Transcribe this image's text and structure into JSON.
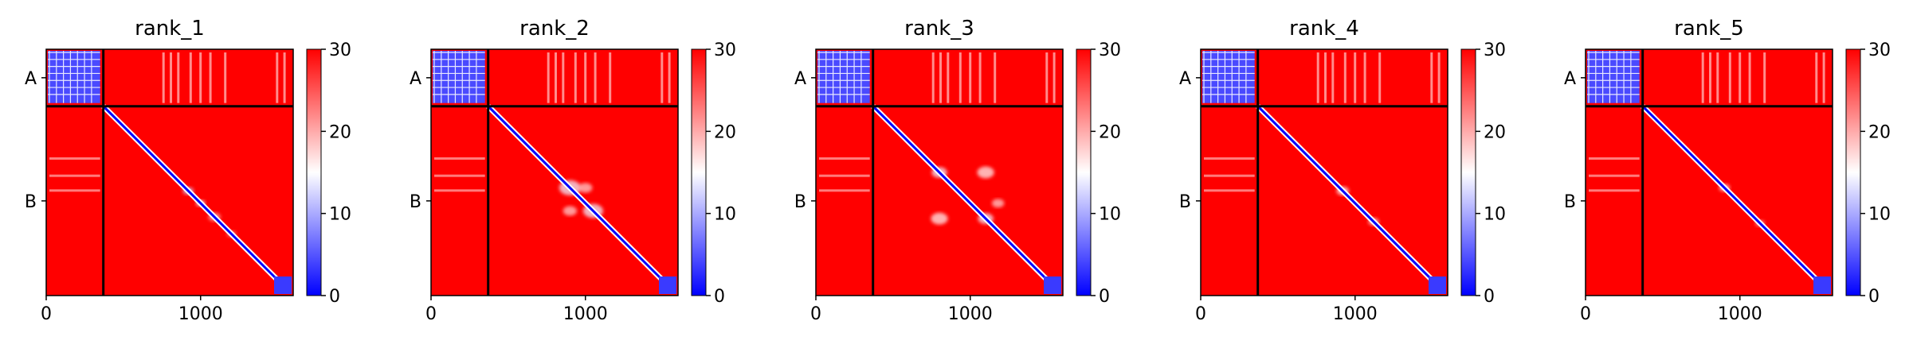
{
  "chart_data": [
    {
      "type": "heatmap",
      "title": "rank_1",
      "xlabel": "",
      "ylabel": "",
      "xlim": [
        0,
        1600
      ],
      "ylim": [
        0,
        1600
      ],
      "x_ticks": [
        0,
        1000
      ],
      "x_tick_labels": [
        "0",
        "1000"
      ],
      "y_categories": [
        "A",
        "B"
      ],
      "chain_boundary": 370,
      "colorbar": {
        "min": 0,
        "max": 30,
        "ticks": [
          0,
          10,
          20,
          30
        ],
        "colormap": "bwr"
      },
      "off_diagonal_features": [
        {
          "center": [
            920,
            920
          ],
          "size": 70,
          "value": 12
        },
        {
          "center": [
            1000,
            1000
          ],
          "size": 60,
          "value": 14
        },
        {
          "center": [
            1090,
            1090
          ],
          "size": 80,
          "value": 20
        },
        {
          "center": [
            1200,
            1200
          ],
          "size": 60,
          "value": 22
        }
      ]
    },
    {
      "type": "heatmap",
      "title": "rank_2",
      "xlabel": "",
      "ylabel": "",
      "xlim": [
        0,
        1600
      ],
      "ylim": [
        0,
        1600
      ],
      "x_ticks": [
        0,
        1000
      ],
      "x_tick_labels": [
        "0",
        "1000"
      ],
      "y_categories": [
        "A",
        "B"
      ],
      "chain_boundary": 370,
      "colorbar": {
        "min": 0,
        "max": 30,
        "ticks": [
          0,
          10,
          20,
          30
        ],
        "colormap": "bwr"
      },
      "off_diagonal_features": [
        {
          "center": [
            900,
            900
          ],
          "size": 140,
          "value": 14
        },
        {
          "center": [
            1050,
            1050
          ],
          "size": 130,
          "value": 14
        },
        {
          "center": [
            1000,
            900
          ],
          "size": 90,
          "value": 18
        },
        {
          "center": [
            900,
            1050
          ],
          "size": 90,
          "value": 18
        }
      ]
    },
    {
      "type": "heatmap",
      "title": "rank_3",
      "xlabel": "",
      "ylabel": "",
      "xlim": [
        0,
        1600
      ],
      "ylim": [
        0,
        1600
      ],
      "x_ticks": [
        0,
        1000
      ],
      "x_tick_labels": [
        "0",
        "1000"
      ],
      "y_categories": [
        "A",
        "B"
      ],
      "chain_boundary": 370,
      "colorbar": {
        "min": 0,
        "max": 30,
        "ticks": [
          0,
          10,
          20,
          30
        ],
        "colormap": "bwr"
      },
      "off_diagonal_features": [
        {
          "center": [
            800,
            800
          ],
          "size": 100,
          "value": 14
        },
        {
          "center": [
            1100,
            800
          ],
          "size": 110,
          "value": 16
        },
        {
          "center": [
            800,
            1100
          ],
          "size": 110,
          "value": 16
        },
        {
          "center": [
            1100,
            1100
          ],
          "size": 100,
          "value": 14
        },
        {
          "center": [
            1180,
            1000
          ],
          "size": 80,
          "value": 18
        }
      ]
    },
    {
      "type": "heatmap",
      "title": "rank_4",
      "xlabel": "",
      "ylabel": "",
      "xlim": [
        0,
        1600
      ],
      "ylim": [
        0,
        1600
      ],
      "x_ticks": [
        0,
        1000
      ],
      "x_tick_labels": [
        "0",
        "1000"
      ],
      "y_categories": [
        "A",
        "B"
      ],
      "chain_boundary": 370,
      "colorbar": {
        "min": 0,
        "max": 30,
        "ticks": [
          0,
          10,
          20,
          30
        ],
        "colormap": "bwr"
      },
      "off_diagonal_features": [
        {
          "center": [
            920,
            920
          ],
          "size": 80,
          "value": 16
        },
        {
          "center": [
            1120,
            1120
          ],
          "size": 70,
          "value": 18
        }
      ]
    },
    {
      "type": "heatmap",
      "title": "rank_5",
      "xlabel": "",
      "ylabel": "",
      "xlim": [
        0,
        1600
      ],
      "ylim": [
        0,
        1600
      ],
      "x_ticks": [
        0,
        1000
      ],
      "x_tick_labels": [
        "0",
        "1000"
      ],
      "y_categories": [
        "A",
        "B"
      ],
      "chain_boundary": 370,
      "colorbar": {
        "min": 0,
        "max": 30,
        "ticks": [
          0,
          10,
          20,
          30
        ],
        "colormap": "bwr"
      },
      "off_diagonal_features": [
        {
          "center": [
            900,
            900
          ],
          "size": 70,
          "value": 17
        },
        {
          "center": [
            1130,
            1130
          ],
          "size": 60,
          "value": 20
        }
      ]
    }
  ],
  "colors": {
    "high": "#ff0000",
    "mid": "#ffffff",
    "low": "#0000ff",
    "frame": "#000000"
  }
}
